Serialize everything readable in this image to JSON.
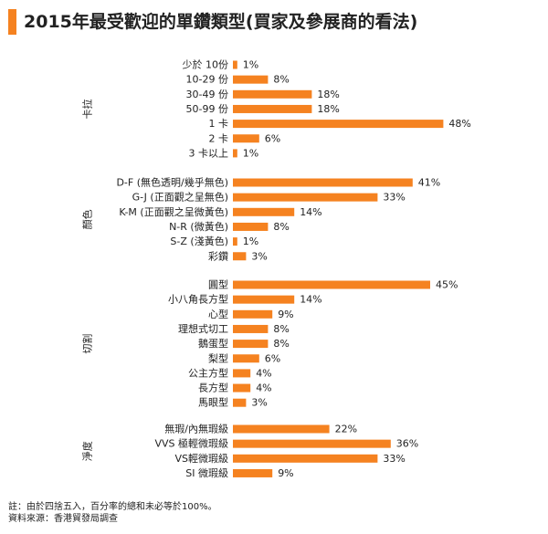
{
  "title": "2015年最受歡迎的單鑽類型(買家及參展商的看法)",
  "accent_color": "#f58220",
  "notes": [
    "註：由於四捨五入，百分率的總和未必等於100%。",
    "資料來源：香港貿發局調查"
  ],
  "chart_data": {
    "type": "bar",
    "orientation": "horizontal",
    "unit": "%",
    "grid": false,
    "groups": [
      {
        "name": "卡拉",
        "categories": [
          "少於 10份",
          "10-29 份",
          "30-49 份",
          "50-99 份",
          "1 卡",
          "2 卡",
          "3 卡以上"
        ],
        "values": [
          1,
          8,
          18,
          18,
          48,
          6,
          1
        ],
        "labels": [
          "1%",
          "8%",
          "18%",
          "18%",
          "48%",
          "6%",
          "1%"
        ]
      },
      {
        "name": "顏色",
        "categories": [
          "D-F (無色透明/幾乎無色)",
          "G-J (正面觀之呈無色)",
          "K-M (正面觀之呈微黃色)",
          "N-R (微黃色)",
          "S-Z (淺黃色)",
          "彩鑽"
        ],
        "values": [
          41,
          33,
          14,
          8,
          1,
          3
        ],
        "labels": [
          "41%",
          "33%",
          "14%",
          "8%",
          "1%",
          "3%"
        ]
      },
      {
        "name": "切割",
        "categories": [
          "圓型",
          "小八角長方型",
          "心型",
          "理想式切工",
          "鵝蛋型",
          "梨型",
          "公主方型",
          "長方型",
          "馬眼型"
        ],
        "values": [
          45,
          14,
          9,
          8,
          8,
          6,
          4,
          4,
          3
        ],
        "labels": [
          "45%",
          "14%",
          "9%",
          "8%",
          "8%",
          "6%",
          "4%",
          "4%",
          "3%"
        ]
      },
      {
        "name": "淨度",
        "categories": [
          "無瑕/內無瑕級",
          "VVS 極輕微瑕級",
          "VS輕微瑕級",
          "SI 微瑕級"
        ],
        "values": [
          22,
          36,
          33,
          9
        ],
        "labels": [
          "22%",
          "36%",
          "33%",
          "9%"
        ]
      }
    ]
  }
}
